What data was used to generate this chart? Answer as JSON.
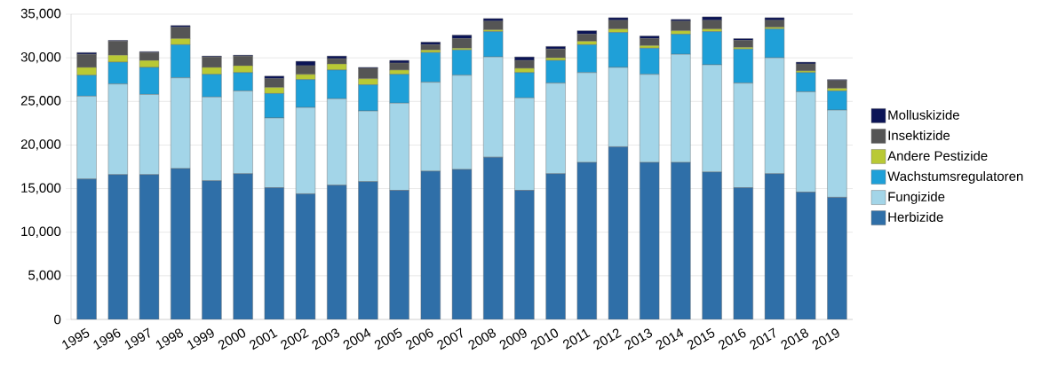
{
  "chart_data": {
    "type": "bar",
    "stacked": true,
    "categories": [
      "1995",
      "1996",
      "1997",
      "1998",
      "1999",
      "2000",
      "2001",
      "2002",
      "2003",
      "2004",
      "2005",
      "2006",
      "2007",
      "2008",
      "2009",
      "2010",
      "2011",
      "2012",
      "2013",
      "2014",
      "2015",
      "2016",
      "2017",
      "2018",
      "2019"
    ],
    "series": [
      {
        "name": "Herbizide",
        "color": "#2f6fa8",
        "values": [
          16100,
          16600,
          16600,
          17300,
          15900,
          16700,
          15100,
          14400,
          15400,
          15800,
          14800,
          17000,
          17200,
          18600,
          14800,
          16700,
          18000,
          19800,
          18000,
          18000,
          16900,
          15100,
          16700,
          14600,
          14000
        ]
      },
      {
        "name": "Fungizide",
        "color": "#a3d5e8",
        "values": [
          9500,
          10400,
          9200,
          10400,
          9600,
          9500,
          8000,
          9900,
          9900,
          8100,
          10000,
          10200,
          10800,
          11500,
          10600,
          10400,
          10300,
          9100,
          10100,
          12400,
          12300,
          12000,
          13300,
          11500,
          10000
        ]
      },
      {
        "name": "Wachstumsregulatoren",
        "color": "#1fa0d8",
        "values": [
          2400,
          2500,
          3100,
          3800,
          2600,
          2100,
          2800,
          3200,
          3300,
          3000,
          3300,
          3400,
          2900,
          2900,
          2900,
          2600,
          3200,
          4000,
          3000,
          2300,
          3800,
          3900,
          3300,
          2200,
          2200
        ]
      },
      {
        "name": "Andere Pestizide",
        "color": "#b9c935",
        "values": [
          900,
          800,
          800,
          700,
          800,
          800,
          700,
          600,
          700,
          700,
          500,
          300,
          200,
          200,
          500,
          300,
          400,
          400,
          300,
          400,
          300,
          200,
          200,
          200,
          300
        ]
      },
      {
        "name": "Insektizide",
        "color": "#555555",
        "values": [
          1500,
          1600,
          900,
          1300,
          1200,
          1100,
          1000,
          1000,
          600,
          1200,
          800,
          600,
          1100,
          1000,
          900,
          1000,
          800,
          1000,
          800,
          1100,
          1000,
          800,
          800,
          800,
          900
        ]
      },
      {
        "name": "Molluskizide",
        "color": "#0b1456",
        "values": [
          200,
          100,
          100,
          200,
          100,
          100,
          300,
          500,
          300,
          100,
          300,
          300,
          400,
          300,
          400,
          300,
          400,
          300,
          300,
          200,
          400,
          200,
          300,
          200,
          100
        ]
      }
    ],
    "ylim": [
      0,
      35000
    ],
    "yticks": [
      {
        "value": 0,
        "label": "0"
      },
      {
        "value": 5000,
        "label": "5,000"
      },
      {
        "value": 10000,
        "label": "10,000"
      },
      {
        "value": 15000,
        "label": "15,000"
      },
      {
        "value": 20000,
        "label": "20,000"
      },
      {
        "value": 25000,
        "label": "25,000"
      },
      {
        "value": 30000,
        "label": "30,000"
      },
      {
        "value": 35000,
        "label": "35,000"
      }
    ],
    "grid": "y",
    "legend": "right"
  }
}
